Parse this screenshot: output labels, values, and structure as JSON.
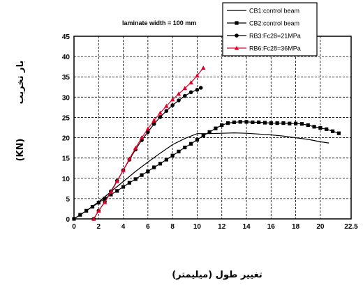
{
  "chart_data": {
    "type": "line",
    "title": "",
    "annotation": "laminate width = 100 mm",
    "xlabel": "تغيير طول (ميليمتر)",
    "ylabel_unit": "(KN)",
    "ylabel": "بار تخريب",
    "xlim": [
      0,
      22.5
    ],
    "ylim": [
      0,
      45
    ],
    "xticks": [
      "0",
      "2",
      "4",
      "6",
      "8",
      "10",
      "12",
      "14",
      "16",
      "18",
      "20",
      "22.5"
    ],
    "yticks": [
      "0",
      "5",
      "10",
      "15",
      "20",
      "25",
      "30",
      "35",
      "40",
      "45"
    ],
    "grid": true,
    "legend_position": "top-right",
    "series": [
      {
        "name": "CB1:control beam",
        "color": "#000000",
        "marker": "none",
        "x": [
          0,
          1,
          2,
          3,
          4,
          5,
          6,
          7,
          8,
          9,
          10,
          11,
          12,
          13,
          14,
          15,
          16,
          17,
          18,
          19,
          20,
          20.7
        ],
        "y": [
          0,
          2.0,
          4.2,
          6.7,
          9.2,
          11.7,
          14.0,
          16.2,
          18.3,
          19.8,
          21.0,
          21.0,
          21.1,
          21.2,
          21.1,
          20.9,
          20.7,
          20.4,
          20.0,
          19.6,
          19.0,
          18.7
        ]
      },
      {
        "name": "CB2:control beam",
        "color": "#000000",
        "marker": "square",
        "x": [
          0,
          0.5,
          1,
          1.5,
          2,
          2.5,
          3,
          3.5,
          4,
          4.5,
          5,
          5.5,
          6,
          6.5,
          7,
          7.5,
          8,
          8.5,
          9,
          9.5,
          10,
          10.5,
          11,
          11.5,
          12,
          12.5,
          13,
          13.5,
          14,
          14.5,
          15,
          15.5,
          16,
          16.5,
          17,
          17.5,
          18,
          18.5,
          19,
          19.5,
          20,
          20.5,
          21,
          21.5
        ],
        "y": [
          0,
          1.0,
          2.0,
          3.0,
          4.0,
          5.0,
          6.0,
          6.9,
          7.9,
          8.9,
          9.8,
          10.8,
          11.7,
          12.7,
          13.6,
          14.6,
          15.6,
          16.6,
          17.6,
          18.5,
          19.5,
          20.5,
          21.4,
          22.3,
          23.1,
          23.6,
          23.8,
          23.9,
          23.9,
          23.8,
          23.8,
          23.7,
          23.6,
          23.6,
          23.6,
          23.5,
          23.5,
          23.4,
          23.1,
          22.7,
          22.4,
          22.1,
          21.6,
          21.1
        ]
      },
      {
        "name": "RB3:Fc28=21MPa",
        "color": "#000000",
        "marker": "circle",
        "x": [
          1.6,
          2.0,
          2.5,
          3.0,
          3.5,
          4.0,
          4.5,
          5.0,
          5.5,
          6.0,
          6.5,
          7.0,
          7.5,
          8.0,
          8.5,
          9.0,
          9.5,
          10.0,
          10.3
        ],
        "y": [
          0,
          2.0,
          4.2,
          6.8,
          9.4,
          12.0,
          14.6,
          17.1,
          19.4,
          21.4,
          23.4,
          25.1,
          26.6,
          28.0,
          29.2,
          30.3,
          31.2,
          31.8,
          32.3
        ]
      },
      {
        "name": "RB6:Fc28=36MPa",
        "color": "#e0002a",
        "marker": "triangle",
        "x": [
          1.6,
          2.0,
          2.5,
          3.0,
          3.5,
          4.0,
          4.5,
          5.0,
          5.5,
          6.0,
          6.5,
          7.0,
          7.5,
          8.0,
          8.5,
          9.0,
          9.5,
          10.0,
          10.5
        ],
        "y": [
          0,
          2.0,
          4.1,
          6.6,
          9.3,
          12.0,
          14.8,
          17.5,
          20.0,
          22.2,
          24.3,
          26.1,
          27.8,
          29.4,
          30.8,
          32.2,
          33.6,
          35.3,
          37.2
        ]
      }
    ]
  }
}
